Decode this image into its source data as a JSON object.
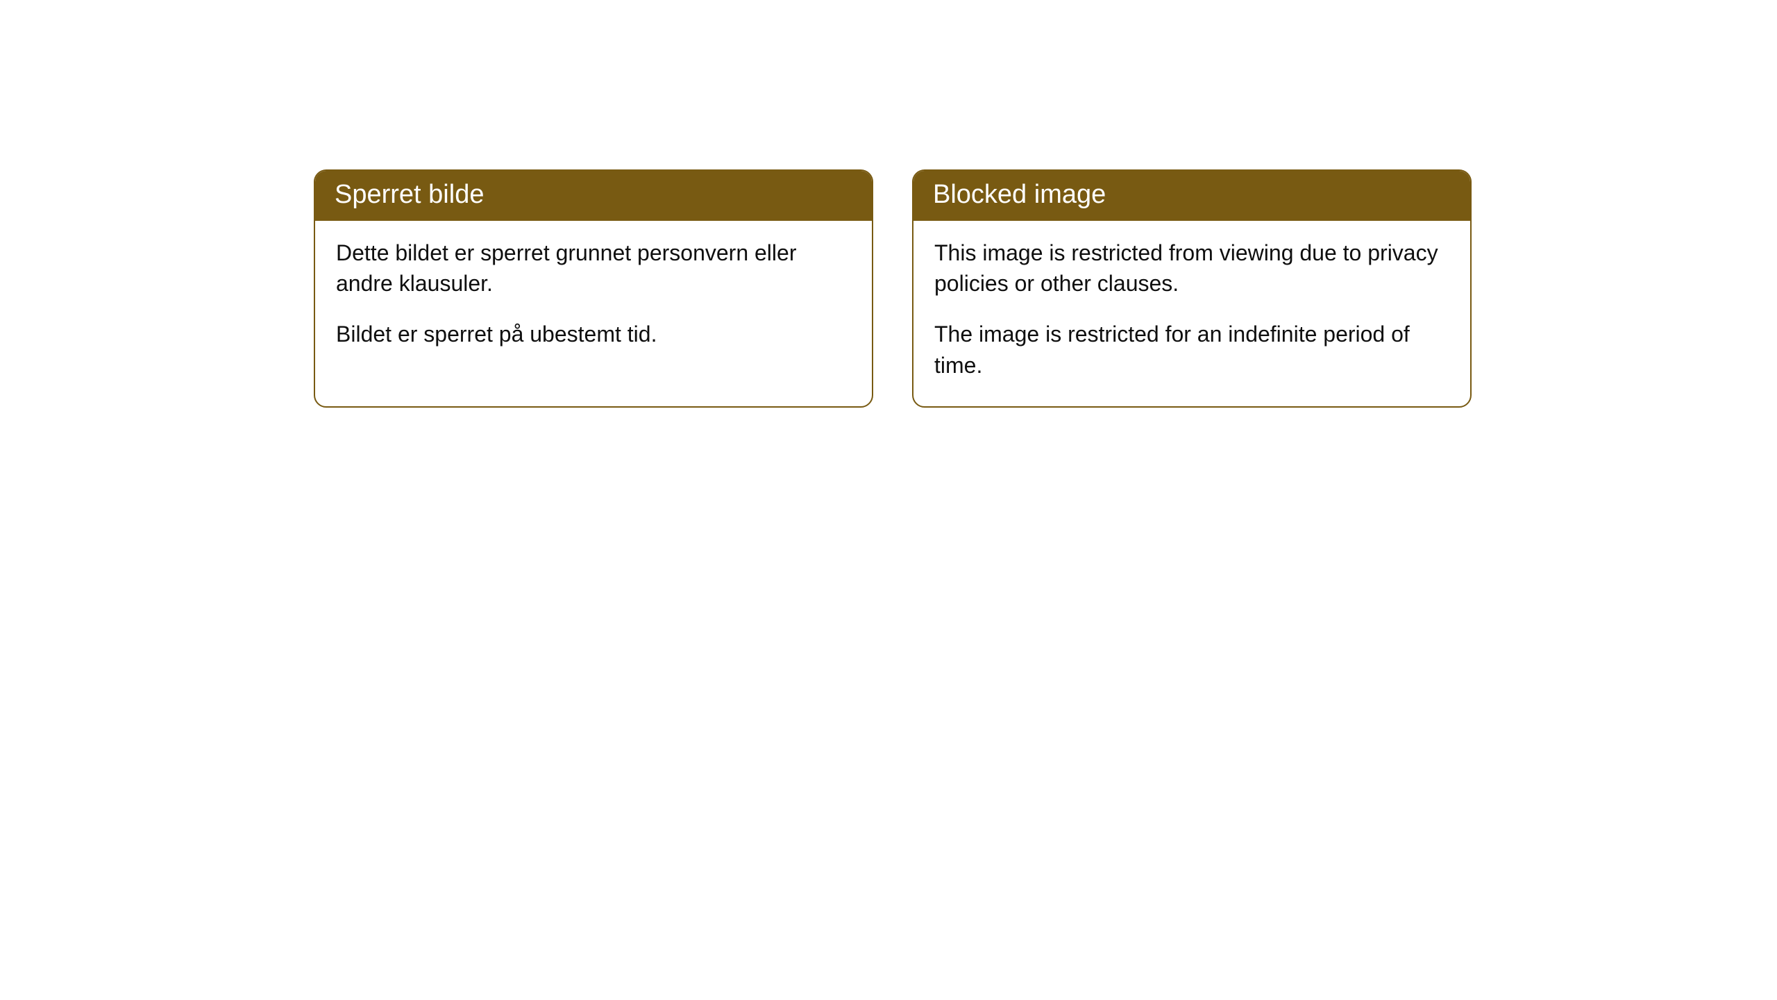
{
  "cards": [
    {
      "title": "Sperret bilde",
      "paragraph1": "Dette bildet er sperret grunnet personvern eller andre klausuler.",
      "paragraph2": "Bildet er sperret på ubestemt tid."
    },
    {
      "title": "Blocked image",
      "paragraph1": "This image is restricted from viewing due to privacy policies or other clauses.",
      "paragraph2": "The image is restricted for an indefinite period of time."
    }
  ],
  "styling": {
    "header_background": "#785a12",
    "header_text_color": "#ffffff",
    "border_color": "#785a12",
    "body_text_color": "#0f0f0f",
    "page_background": "#ffffff",
    "border_radius": 18,
    "header_fontsize": 38,
    "body_fontsize": 32
  }
}
